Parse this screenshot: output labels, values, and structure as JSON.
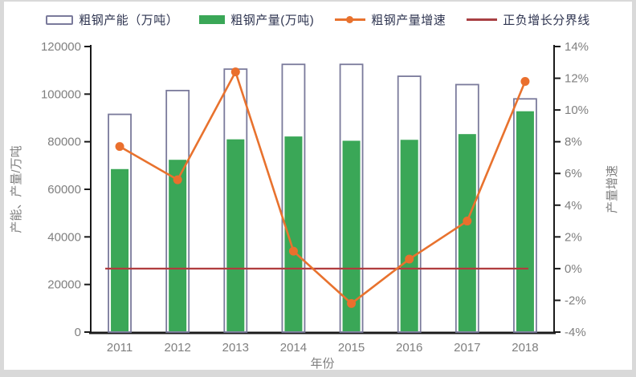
{
  "legend": [
    {
      "label": "粗钢产能（万吨）",
      "type": "capacity-outline-bar"
    },
    {
      "label": "粗钢产量(万吨)",
      "type": "production-filled-bar"
    },
    {
      "label": "粗钢产量增速",
      "type": "growth-line"
    },
    {
      "label": "正负增长分界线",
      "type": "zero-boundary-line"
    }
  ],
  "colors": {
    "production_green": "#3aa757",
    "capacity_border": "#7a7a9b",
    "growth_orange": "#e8722e",
    "marker_orange": "#ea6f2d",
    "zero_line_red": "#b03b3e",
    "axis_black": "#1a1a1a",
    "tick_text_gray": "#7f7f7f",
    "legend_text": "#2e3450"
  },
  "chart_data": {
    "type": "bar",
    "subtype": "bar-line-combo",
    "categories": [
      "2011",
      "2012",
      "2013",
      "2014",
      "2015",
      "2016",
      "2017",
      "2018"
    ],
    "series": [
      {
        "name": "粗钢产能（万吨）",
        "kind": "bar-outline",
        "axis": "left",
        "values": [
          91500,
          101500,
          110500,
          112500,
          112500,
          107500,
          104000,
          98000
        ]
      },
      {
        "name": "粗钢产量(万吨)",
        "kind": "bar-filled",
        "axis": "left",
        "values": [
          68500,
          72400,
          81000,
          82200,
          80400,
          80800,
          83200,
          92800
        ]
      },
      {
        "name": "粗钢产量增速",
        "kind": "line-with-markers",
        "axis": "right",
        "values": [
          7.7,
          5.6,
          12.4,
          1.1,
          -2.2,
          0.6,
          3.0,
          11.8
        ]
      },
      {
        "name": "正负增长分界线",
        "kind": "horizontal-line",
        "axis": "right",
        "value": 0
      }
    ],
    "xlabel": "年份",
    "ylabel_left": "产能、产量/万吨",
    "ylabel_right": "产量增速",
    "ylim_left": [
      0,
      120000
    ],
    "ylim_right": [
      -4,
      14
    ],
    "yticks_left": [
      "0",
      "20000",
      "40000",
      "60000",
      "80000",
      "100000",
      "120000"
    ],
    "yticks_right": [
      "-4%",
      "-2%",
      "0%",
      "2%",
      "4%",
      "6%",
      "8%",
      "10%",
      "12%",
      "14%"
    ],
    "grid": "off",
    "legend_position": "top-center"
  }
}
